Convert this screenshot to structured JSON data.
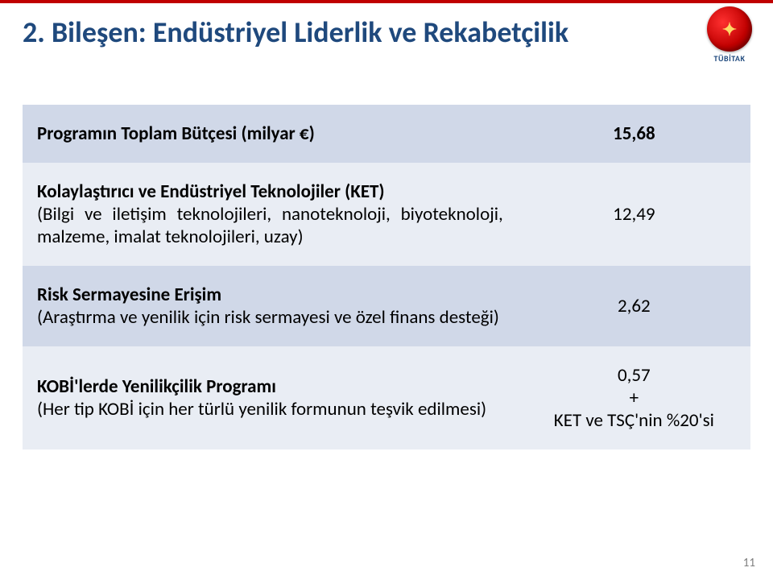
{
  "header": {
    "title": "2. Bileşen: Endüstriyel Liderlik ve Rekabetçilik",
    "logo_label": "TÜBİTAK",
    "accent_color": "#c00000",
    "title_color": "#1f497d"
  },
  "table": {
    "header_bg": "#d0d8e8",
    "alt1_bg": "#e9edf4",
    "alt2_bg": "#d0d8e8",
    "font_size_pt": 18,
    "rows": [
      {
        "left_bold": "Programın Toplam Bütçesi (milyar €)",
        "left_desc": "",
        "right": "15,68",
        "is_header": true
      },
      {
        "left_bold": "Kolaylaştırıcı ve Endüstriyel Teknolojiler (KET)",
        "left_desc": "(Bilgi ve iletişim teknolojileri, nanoteknoloji, biyoteknoloji, malzeme, imalat teknolojileri, uzay)",
        "right": "12,49",
        "is_header": false
      },
      {
        "left_bold": "Risk Sermayesine Erişim",
        "left_desc": "(Araştırma ve yenilik için risk sermayesi ve özel finans desteği)",
        "right": "2,62",
        "is_header": false
      },
      {
        "left_bold": "KOBİ'lerde Yenilikçilik Programı",
        "left_desc": "(Her tip KOBİ için her türlü yenilik formunun teşvik edilmesi)",
        "right": "0,57\n+\nKET ve TSÇ'nin %20'si",
        "is_header": false
      }
    ]
  },
  "page_number": "11"
}
